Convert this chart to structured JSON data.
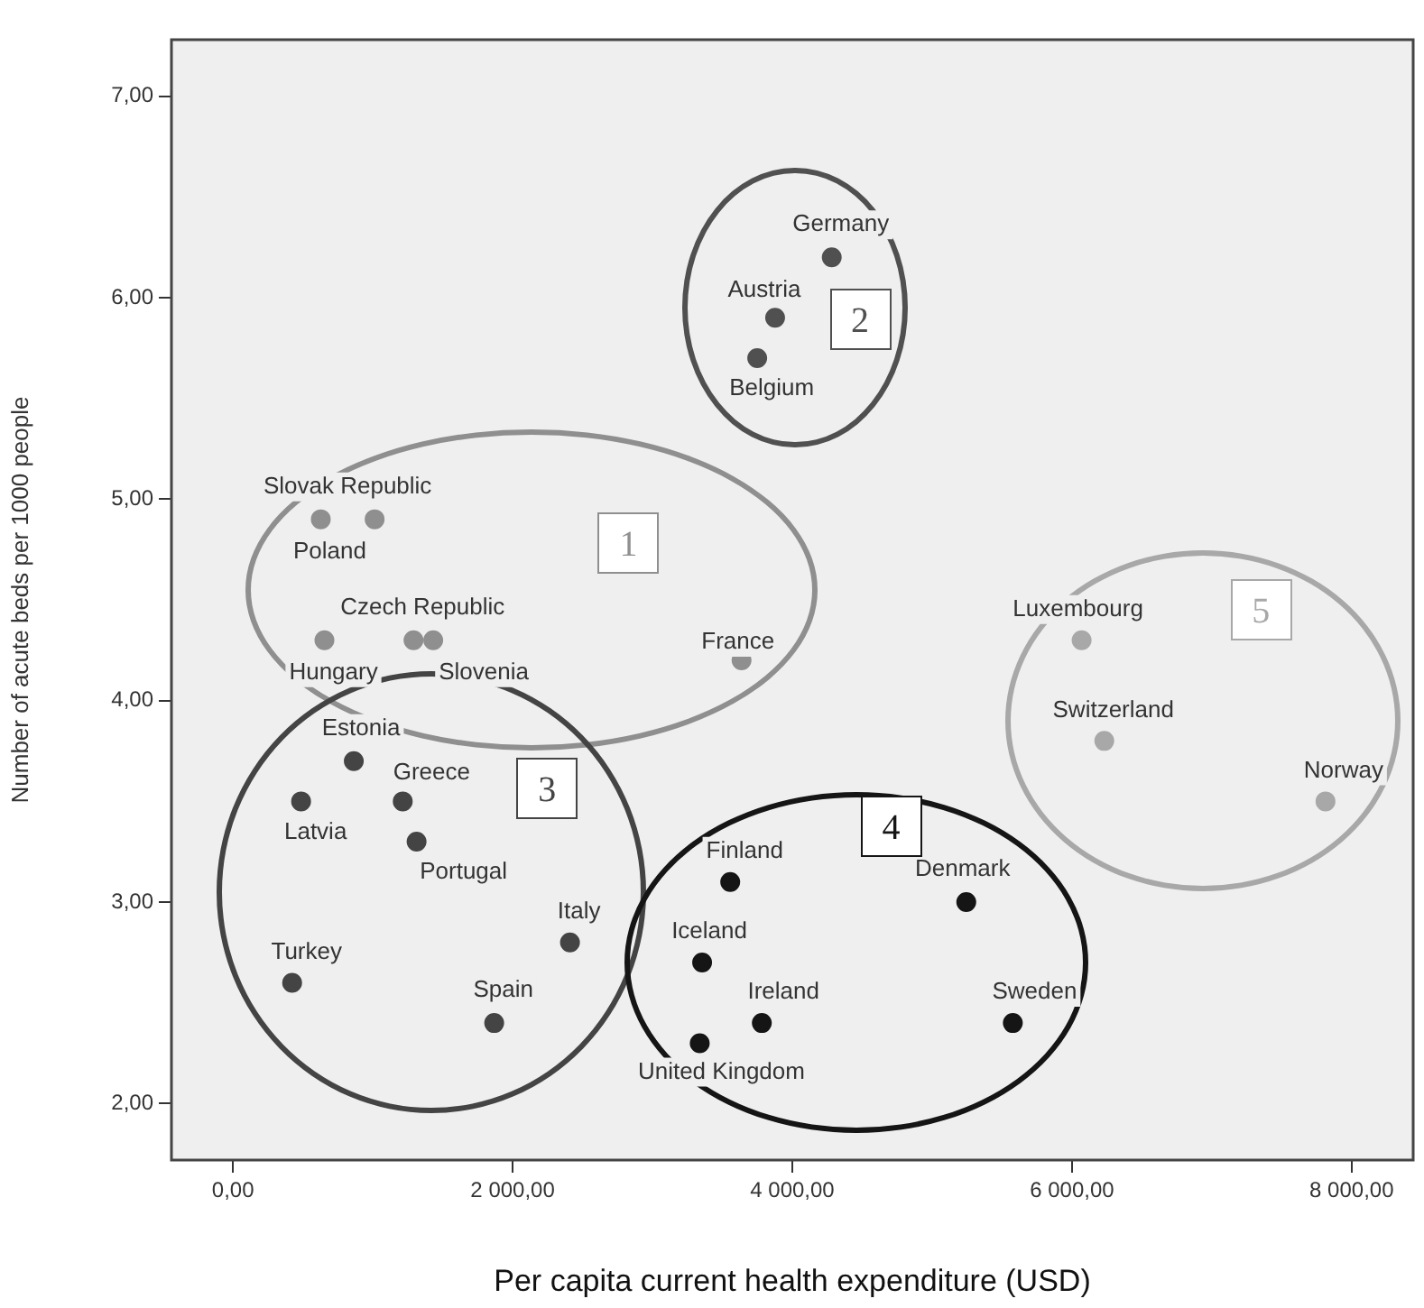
{
  "chart_data": {
    "type": "scatter",
    "xlabel": "Per capita current health expenditure (USD)",
    "ylabel": "Number of acute beds per 1000 people",
    "xlim": [
      -440,
      8440
    ],
    "ylim": [
      1.72,
      7.28
    ],
    "xticks": [
      {
        "value": 0,
        "label": "0,00"
      },
      {
        "value": 2000,
        "label": "2 000,00"
      },
      {
        "value": 4000,
        "label": "4 000,00"
      },
      {
        "value": 6000,
        "label": "6 000,00"
      },
      {
        "value": 8000,
        "label": "8 000,00"
      }
    ],
    "yticks": [
      {
        "value": 2,
        "label": "2,00"
      },
      {
        "value": 3,
        "label": "3,00"
      },
      {
        "value": 4,
        "label": "4,00"
      },
      {
        "value": 5,
        "label": "5,00"
      },
      {
        "value": 6,
        "label": "6,00"
      },
      {
        "value": 7,
        "label": "7,00"
      }
    ],
    "grid": false,
    "legend": false,
    "marker": "circle",
    "series": [
      {
        "name": "1",
        "color": "#8f8f8f",
        "x": [
          1013,
          628,
          1291,
          654,
          1432,
          3637
        ],
        "values": [
          4.9,
          4.9,
          4.3,
          4.3,
          4.3,
          4.2
        ]
      },
      {
        "name": "2",
        "color": "#505050",
        "x": [
          4282,
          3877,
          3749
        ],
        "values": [
          6.2,
          5.9,
          5.7
        ]
      },
      {
        "name": "3",
        "color": "#444444",
        "x": [
          864,
          1214,
          487,
          1313,
          2410,
          423,
          1868
        ],
        "values": [
          3.7,
          3.5,
          3.5,
          3.3,
          2.8,
          2.6,
          2.4
        ]
      },
      {
        "name": "4",
        "color": "#151515",
        "x": [
          3556,
          5244,
          3355,
          3782,
          5577,
          3338
        ],
        "values": [
          3.1,
          3.0,
          2.7,
          2.4,
          2.4,
          2.3
        ]
      },
      {
        "name": "5",
        "color": "#a8a8a8",
        "x": [
          6069,
          6231,
          7813
        ],
        "values": [
          4.3,
          3.8,
          3.5
        ]
      }
    ],
    "annotations": [
      {
        "text": "Slovak Republic",
        "x": 1013,
        "y": 4.9
      },
      {
        "text": "Poland",
        "x": 628,
        "y": 4.9
      },
      {
        "text": "Czech Republic",
        "x": 1291,
        "y": 4.3
      },
      {
        "text": "Hungary",
        "x": 654,
        "y": 4.3
      },
      {
        "text": "Slovenia",
        "x": 1432,
        "y": 4.3
      },
      {
        "text": "France",
        "x": 3637,
        "y": 4.2
      },
      {
        "text": "Germany",
        "x": 4282,
        "y": 6.2
      },
      {
        "text": "Austria",
        "x": 3877,
        "y": 5.9
      },
      {
        "text": "Belgium",
        "x": 3749,
        "y": 5.7
      },
      {
        "text": "Estonia",
        "x": 864,
        "y": 3.7
      },
      {
        "text": "Greece",
        "x": 1214,
        "y": 3.5
      },
      {
        "text": "Latvia",
        "x": 487,
        "y": 3.5
      },
      {
        "text": "Portugal",
        "x": 1313,
        "y": 3.3
      },
      {
        "text": "Italy",
        "x": 2410,
        "y": 2.8
      },
      {
        "text": "Turkey",
        "x": 423,
        "y": 2.6
      },
      {
        "text": "Spain",
        "x": 1868,
        "y": 2.4
      },
      {
        "text": "Finland",
        "x": 3556,
        "y": 3.1
      },
      {
        "text": "Denmark",
        "x": 5244,
        "y": 3.0
      },
      {
        "text": "Iceland",
        "x": 3355,
        "y": 2.7
      },
      {
        "text": "Ireland",
        "x": 3782,
        "y": 2.4
      },
      {
        "text": "Sweden",
        "x": 5577,
        "y": 2.4
      },
      {
        "text": "United Kingdom",
        "x": 3338,
        "y": 2.3
      },
      {
        "text": "Luxembourg",
        "x": 6069,
        "y": 4.3
      },
      {
        "text": "Switzerland",
        "x": 6231,
        "y": 3.8
      },
      {
        "text": "Norway",
        "x": 7813,
        "y": 3.5
      }
    ]
  }
}
